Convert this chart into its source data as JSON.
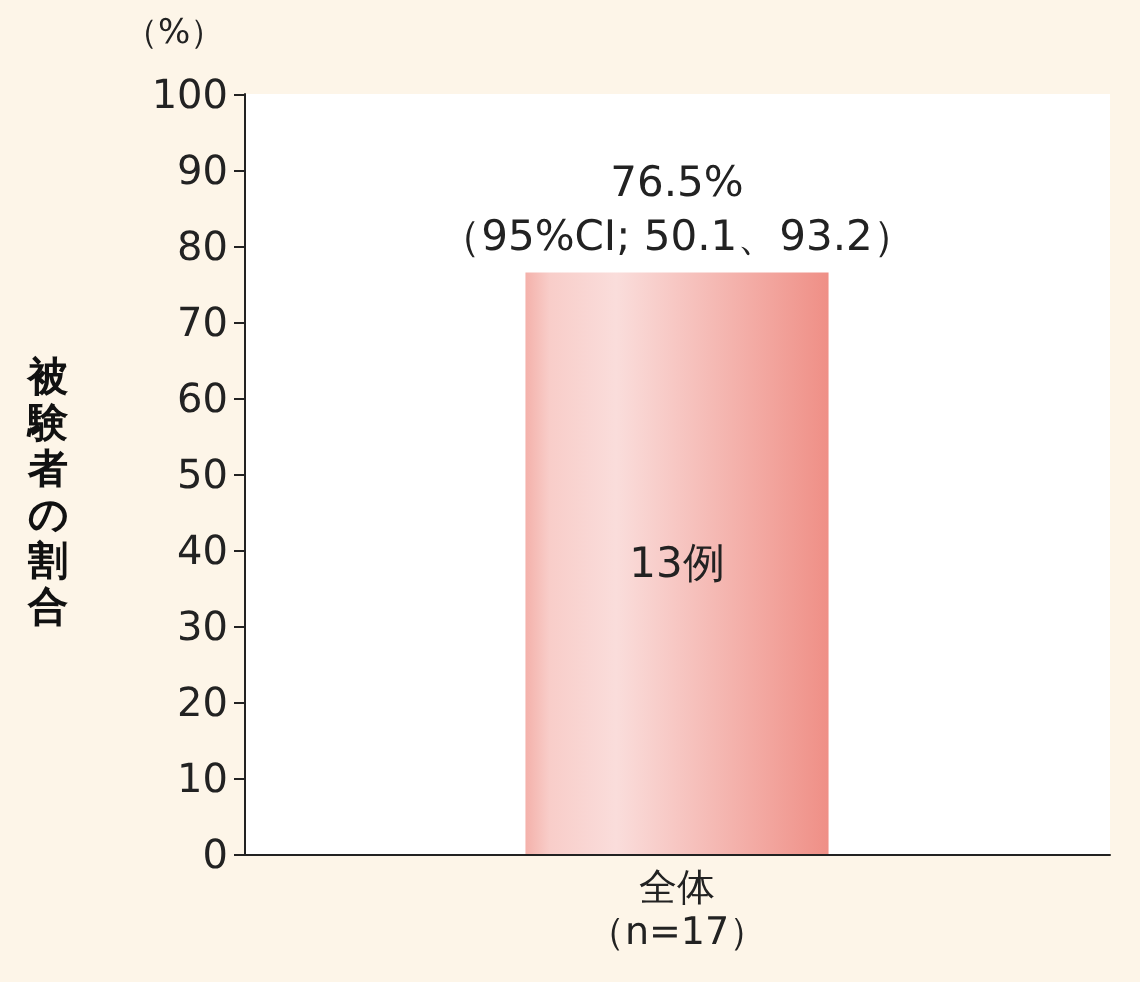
{
  "chart_data": {
    "type": "bar",
    "ylabel": "被験者の割合",
    "categories": [
      "全体（n=17）"
    ],
    "values": [
      76.5
    ],
    "value_labels": [
      "76.5%\n（95%CI; 50.1、93.2）"
    ],
    "color": "#ef8f86",
    "ylim": [
      0,
      100
    ],
    "yticks": [
      0,
      10,
      20,
      30,
      40,
      50,
      60,
      70,
      80,
      90,
      100
    ],
    "grid": false,
    "annotations": [
      "（%）",
      "13例"
    ]
  }
}
